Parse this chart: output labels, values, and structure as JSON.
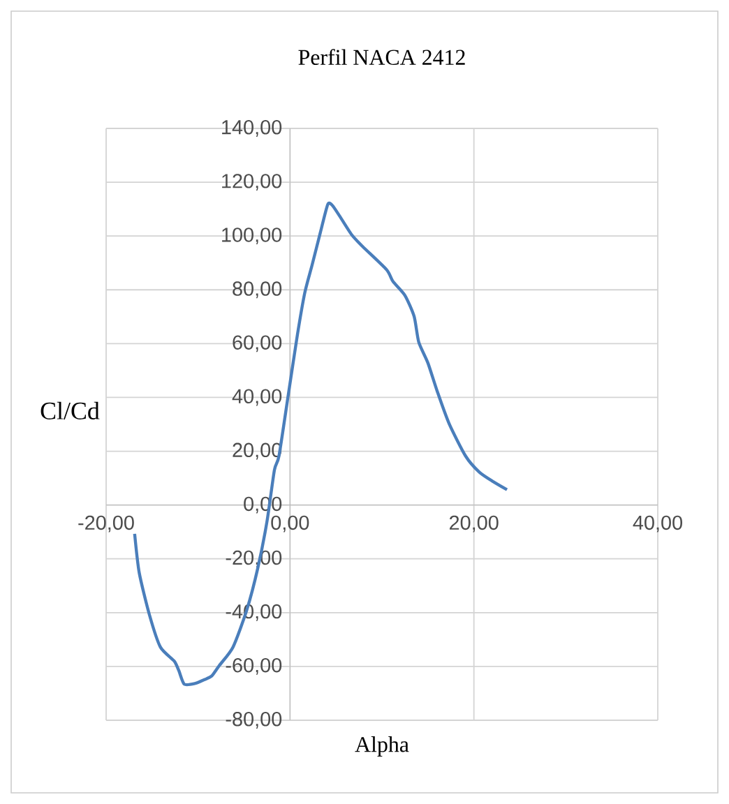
{
  "chart_data": {
    "type": "line",
    "title": "Perfil NACA 2412",
    "xlabel": "Alpha",
    "ylabel": "Cl/Cd",
    "color": "#4a7ebb",
    "grid": true,
    "x": [
      -16.9,
      -16.4,
      -15.3,
      -14.1,
      -12.6,
      -12.1,
      -11.5,
      -10.3,
      -9.3,
      -8.5,
      -7.7,
      -6.2,
      -4.7,
      -3.5,
      -2.5,
      -1.7,
      -1.2,
      -0.2,
      0.8,
      1.6,
      2.4,
      3.3,
      4.1,
      4.6,
      5.4,
      6.7,
      7.9,
      10.5,
      11.2,
      12.5,
      13.5,
      14.0,
      15.0,
      16.0,
      17.3,
      19.1,
      20.6,
      22.1,
      23.6
    ],
    "values": [
      -10.7,
      -25.2,
      -40.7,
      -52.8,
      -58.0,
      -61.5,
      -66.6,
      -66.3,
      -64.9,
      -63.5,
      -59.7,
      -52.8,
      -39.0,
      -23.4,
      -6.0,
      13.0,
      18.2,
      40.7,
      63.2,
      78.8,
      89.2,
      101.3,
      111.7,
      111.4,
      107.4,
      100.5,
      96.1,
      87.5,
      83.1,
      77.9,
      70.1,
      60.6,
      52.8,
      42.4,
      30.3,
      18.2,
      12.2,
      8.7,
      5.7
    ],
    "xlim": [
      -20,
      40
    ],
    "ylim": [
      -80,
      140
    ],
    "xticks": [
      {
        "value": -20,
        "label": "-20,00"
      },
      {
        "value": 0,
        "label": "0,00"
      },
      {
        "value": 20,
        "label": "20,00"
      },
      {
        "value": 40,
        "label": "40,00"
      }
    ],
    "yticks": [
      {
        "value": -80,
        "label": "-80,00"
      },
      {
        "value": -60,
        "label": "-60,00"
      },
      {
        "value": -40,
        "label": "-40,00"
      },
      {
        "value": -20,
        "label": "-20,00"
      },
      {
        "value": 0,
        "label": "0,00"
      },
      {
        "value": 20,
        "label": "20,00"
      },
      {
        "value": 40,
        "label": "40,00"
      },
      {
        "value": 60,
        "label": "60,00"
      },
      {
        "value": 80,
        "label": "80,00"
      },
      {
        "value": 100,
        "label": "100,00"
      },
      {
        "value": 120,
        "label": "120,00"
      },
      {
        "value": 140,
        "label": "140,00"
      }
    ]
  }
}
